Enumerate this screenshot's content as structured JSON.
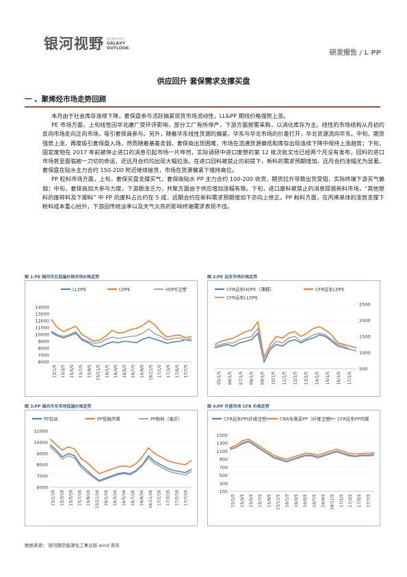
{
  "header": {
    "logo_cn": "银河视野",
    "logo_en_top": "GALAXY",
    "logo_en_bottom": "OUTLOOK",
    "logo_tiny": "银河期货 研究",
    "report_tag": "研发报告 / L PP"
  },
  "title": "供应回升 套保需求支撑买盘",
  "section1_title": "一 、聚烯烃市场走势回顾",
  "paragraphs": [
    "本月由于社会库存连续下降，套保盘参与活跃抽紧现货市场流动性，LL&PP 期线价格强势上涨。",
    "PE 市场方面，上旬线性因华北康厂受环评影响，部分工厂有所停产，下游方面按需采购，以消化库存为主。线性的市场结构从月初的反向市场走向正向市场，吸引套保商参与。另外，随着华东线性货源的偏紧，华东与华北市场的价差打开，华北货源流向华东。中旬，期货强势上涨，再度吸引套保盘入场，然而随着基差走弱，套保商出货困难，市场在流通货源偏低和库存出现连续下降中保持上涨趋势；下旬，固定废物在 2017 年前被停止进口的消息引起市场一片哗然，实际调研中进口废塑的第 12 批次批文也已经两个月没有发布，回料的进口市场甚至面临被一刀切的命运，近远月合约均出现大幅拉涨。在进口回料被禁止的前提下，新料的需求预期增加，远月合约涨幅尤为显著。套保盘在贴水主力合约 150-200 附近继续接货，市场在货源偏紧下维持高位。",
    "PP 粒料市场方面，上旬，套保买盘支撑买气，套保商贴水 PP 主力合约 100-200 收货，期货拉升导致出货受阻，实际终端下游买气偏弱；中旬，套保商加大参与力度，下游跟涨乏力，共聚方面由于供应增加涨幅有限。下旬，进口废料被禁止的消息提振新料市场，“其他塑料的废碎料及下脚料” 中 PP 的废料占比约在 5 成，远期合约在新料需求预期增加下亦向上修正。PP 粉料方面，在丙烯单体的涨势支撑下粉料成本重心抬升，下游因传统淡季以及天气炎热的影响终端需求表现不佳。"
  ],
  "charts": [
    {
      "caption": "图 1:PE 国内华北低端价格市场价格走势",
      "chart_data": {
        "type": "line",
        "legend": [
          "LLDPE",
          "LDPE",
          "HDPE注塑"
        ],
        "colors": [
          "#4f81bd",
          "#ed7d31",
          "#a5a5a5"
        ],
        "y_ticks": [
          "6000",
          "7000",
          "8000",
          "9000",
          "10000",
          "11000",
          "12000",
          "13000",
          "14000"
        ],
        "ylim": [
          6000,
          14000
        ],
        "x_ticks": [
          "15/1/5",
          "15/3/5",
          "15/5/5",
          "15/7/5",
          "15/9/5",
          "15/11/5",
          "16/1/5",
          "16/3/5",
          "16/5/5",
          "16/7/5",
          "16/9/5",
          "16/11/5",
          "17/1/5",
          "17/3/5",
          "17/5/5",
          "17/7/5"
        ],
        "series": [
          {
            "name": "LLDPE",
            "values": [
              10300,
              9800,
              9500,
              9800,
              10200,
              9200,
              8800,
              8300,
              8200,
              8600,
              8900,
              8800,
              9000,
              8900,
              8800,
              9300,
              9600,
              9300,
              9000,
              8700,
              8900,
              9000,
              9200,
              9100
            ]
          },
          {
            "name": "LDPE",
            "values": [
              12200,
              11000,
              10400,
              10800,
              11200,
              10000,
              9500,
              9000,
              9200,
              9800,
              10600,
              10200,
              10300,
              10700,
              10900,
              11300,
              12000,
              11400,
              10300,
              9600,
              9800,
              9900,
              9500,
              9700
            ]
          },
          {
            "name": "HDPE注塑",
            "values": [
              10500,
              10000,
              9700,
              10000,
              10400,
              9400,
              9000,
              8700,
              8800,
              9300,
              9600,
              9400,
              9600,
              9700,
              9800,
              10200,
              10800,
              10100,
              9700,
              9200,
              9400,
              9500,
              9200,
              9400
            ]
          }
        ]
      }
    },
    {
      "caption": "图 2:PE 远东市场价格走势",
      "chart_data": {
        "type": "line",
        "legend": [
          "CFR远东HDPE（薄膜）",
          "CFR远东LDPE",
          "CFR远东LLDPE"
        ],
        "colors": [
          "#4f81bd",
          "#ed7d31",
          "#a5a5a5"
        ],
        "y_ticks": [
          "500",
          "1000",
          "1500",
          "2000",
          "2500"
        ],
        "ylim": [
          500,
          2500
        ],
        "x_ticks": [
          "05/1/5",
          "06/1/5",
          "07/1/5",
          "08/1/5",
          "09/1/5",
          "10/1/5",
          "11/1/5",
          "12/1/5",
          "13/1/5",
          "14/1/5",
          "15/1/5",
          "16/1/5",
          "17/1/5"
        ],
        "series": [
          {
            "name": "CFR远东HDPE（薄膜）",
            "values": [
              1150,
              1200,
              1250,
              1200,
              1300,
              1350,
              1400,
              1600,
              700,
              1100,
              1250,
              1200,
              1350,
              1400,
              1300,
              1400,
              1450,
              1550,
              1500,
              1350,
              1200,
              1150,
              1100,
              1050
            ]
          },
          {
            "name": "CFR远东LDPE",
            "values": [
              1250,
              1350,
              1400,
              1450,
              1550,
              1650,
              1700,
              1950,
              850,
              1250,
              1500,
              1450,
              1600,
              1650,
              1500,
              1600,
              1750,
              1800,
              1700,
              1550,
              1300,
              1250,
              1200,
              1150
            ]
          },
          {
            "name": "CFR远东LLDPE",
            "values": [
              1200,
              1250,
              1300,
              1300,
              1400,
              1450,
              1500,
              1750,
              750,
              1150,
              1350,
              1300,
              1450,
              1500,
              1350,
              1450,
              1550,
              1600,
              1550,
              1400,
              1250,
              1200,
              1100,
              1050
            ]
          }
        ]
      }
    },
    {
      "caption": "图 3:PP 国内华东市场低端价格走势",
      "chart_data": {
        "type": "line",
        "legend": [
          "PP拉丝",
          "PP低融共聚",
          "PP粉料（临沂）"
        ],
        "colors": [
          "#4f81bd",
          "#ed7d31",
          "#a5a5a5"
        ],
        "y_ticks": [
          "6000",
          "7000",
          "8000",
          "9000",
          "10000",
          "11000"
        ],
        "ylim": [
          6000,
          11000
        ],
        "x_ticks": [
          "15/1/16",
          "15/3/16",
          "15/5/16",
          "15/7/16",
          "15/9/16",
          "15/11/16",
          "16/1/16",
          "16/3/16",
          "16/5/16",
          "16/7/16",
          "16/9/16",
          "16/11/16",
          "17/1/16",
          "17/3/16",
          "17/5/16",
          "17/7/16"
        ],
        "series": [
          {
            "name": "PP拉丝",
            "values": [
              9800,
              9300,
              8700,
              9000,
              8800,
              8000,
              7500,
              7000,
              6600,
              6800,
              7000,
              7200,
              7300,
              7200,
              7500,
              8000,
              8800,
              8300,
              8000,
              7700,
              7500,
              7400,
              7300,
              7600
            ]
          },
          {
            "name": "PP低融共聚",
            "values": [
              10300,
              9800,
              9300,
              9600,
              9400,
              8600,
              8200,
              7700,
              7200,
              7400,
              7600,
              7800,
              7900,
              7800,
              8100,
              8700,
              9500,
              9000,
              8700,
              8400,
              8200,
              8100,
              8000,
              8400
            ]
          },
          {
            "name": "PP粉料（临沂）",
            "values": [
              9600,
              9100,
              8500,
              8800,
              8600,
              7800,
              7300,
              6900,
              6500,
              6700,
              6900,
              7100,
              7200,
              7100,
              7400,
              7900,
              8600,
              8100,
              7800,
              7500,
              7300,
              7200,
              7100,
              7400
            ]
          }
        ]
      }
    },
    {
      "caption": "图 4:PP 外盘市场 CFR 价格走势",
      "chart_data": {
        "type": "line",
        "legend": [
          "CFR远东PP(纤维注塑)",
          "CRR东南亚PP（纤维注塑）",
          "CFR远东PP均聚"
        ],
        "colors": [
          "#4f81bd",
          "#ed7d31",
          "#a5a5a5"
        ],
        "y_ticks": [
          "100",
          "300",
          "500",
          "700",
          "900",
          "1100",
          "1300",
          "1500"
        ],
        "ylim": [
          100,
          1500
        ],
        "x_ticks": [
          "15/1/5",
          "15/3/5",
          "15/5/5",
          "15/7/5",
          "15/9/5",
          "15/11/5",
          "16/1/5",
          "16/3/5",
          "16/5/5",
          "16/7/5",
          "16/9/5",
          "16/11/5",
          "17/1/5",
          "17/3/5",
          "17/5/5",
          "17/7/5"
        ],
        "series": [
          {
            "name": "CFR远东PP(纤维注塑)",
            "values": [
              1150,
              1200,
              1300,
              1350,
              1250,
              1150,
              1050,
              950,
              900,
              850,
              900,
              950,
              1000,
              1000,
              950,
              1000,
              1050,
              1100,
              1050,
              1000,
              980,
              1000,
              1000,
              1020
            ]
          },
          {
            "name": "CRR东南亚PP（纤维注塑）",
            "values": [
              1180,
              1250,
              1360,
              1400,
              1300,
              1200,
              1100,
              1000,
              940,
              900,
              950,
              1000,
              1050,
              1040,
              1000,
              1050,
              1100,
              1150,
              1100,
              1050,
              1030,
              1040,
              1050,
              1060
            ]
          },
          {
            "name": "CFR远东PP均聚",
            "values": [
              1140,
              1190,
              1280,
              1330,
              1230,
              1130,
              1030,
              930,
              880,
              830,
              880,
              930,
              980,
              980,
              930,
              980,
              1030,
              1080,
              1030,
              980,
              960,
              980,
              980,
              1000
            ]
          }
        ]
      }
    }
  ],
  "source": "数据来源：    银河期货能源化工事业部    wind 资讯",
  "colors": {
    "accent": "#b64a2d",
    "caption": "#3a5b84"
  }
}
